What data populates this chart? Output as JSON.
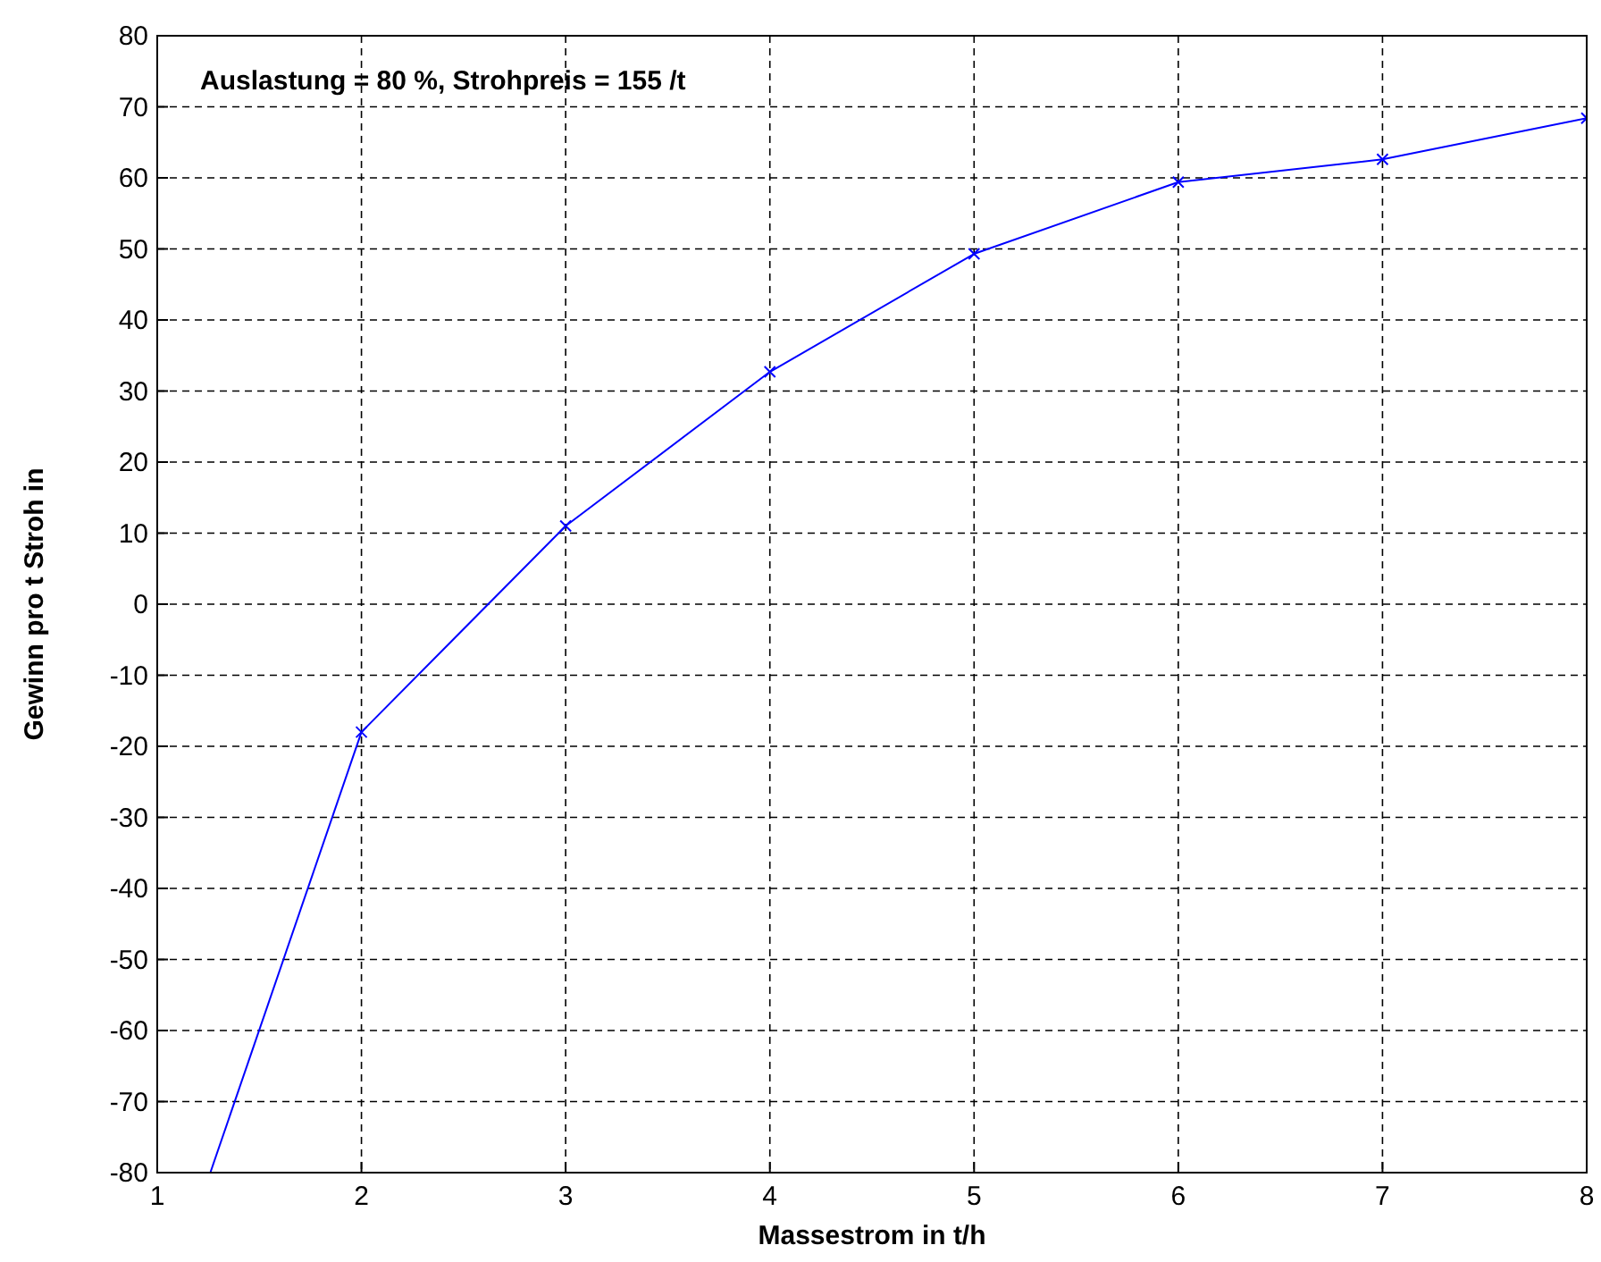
{
  "chart_data": {
    "type": "line",
    "xlabel": "Massestrom in t/h",
    "ylabel": "Gewinn pro t Stroh in",
    "annotations": [
      "Auslastung = 80 %, Strohpreis = 155   /t"
    ],
    "xlim": [
      1,
      8
    ],
    "xticks": [
      1,
      2,
      3,
      4,
      5,
      6,
      7,
      8
    ],
    "ylim": [
      -80,
      80
    ],
    "yticks": [
      -80,
      -70,
      -60,
      -50,
      -40,
      -30,
      -20,
      -10,
      0,
      10,
      20,
      30,
      40,
      50,
      60,
      70,
      80
    ],
    "grid": true,
    "series": [
      {
        "color": "#0000ff",
        "x": [
          1.26,
          2
        ],
        "values": [
          -80,
          -18
        ]
      },
      {
        "color": "#0000ff",
        "x": [
          2,
          3,
          4,
          5,
          6,
          7,
          8
        ],
        "values": [
          -18,
          11,
          32.7,
          49.3,
          59.4,
          62.6,
          68.4
        ],
        "marker": "cross"
      }
    ]
  }
}
